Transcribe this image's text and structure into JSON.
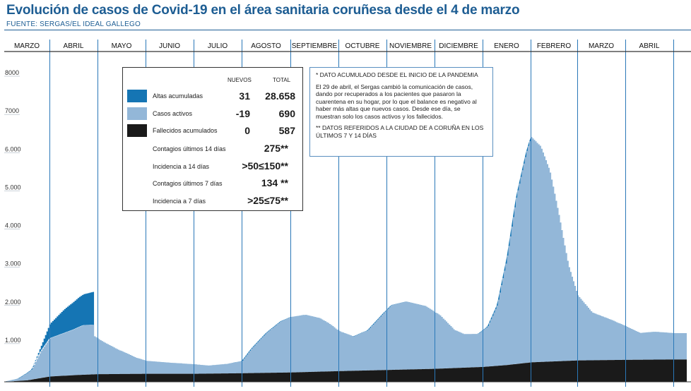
{
  "title": "Evolución de casos de Covid-19 en el área sanitaria coruñesa desde el 4 de marzo",
  "source": "FUENTE: SERGAS/EL IDEAL GALLEGO",
  "colors": {
    "title": "#1d5d93",
    "altas": "#1575b4",
    "activos": "#93b7d8",
    "fallecidos": "#1a1a1a",
    "month_line": "#2a78b8",
    "axis": "#333333"
  },
  "legend": {
    "header_nuevos": "NUEVOS",
    "header_total": "TOTAL",
    "rows": [
      {
        "label": "Altas acumuladas",
        "nuevos": "31",
        "total": "28.658",
        "color_key": "altas"
      },
      {
        "label": "Casos activos",
        "nuevos": "-19",
        "total": "690",
        "color_key": "activos"
      },
      {
        "label": "Fallecidos acumulados",
        "nuevos": "0",
        "total": "587",
        "color_key": "fallecidos"
      }
    ],
    "stats": [
      {
        "label": "Contagios últimos 14 días",
        "value": "275**"
      },
      {
        "label": "Incidencia a 14 días",
        "value": ">50≤150**"
      },
      {
        "label": "Contagios últimos 7 días",
        "value": "134 **"
      },
      {
        "label": "Incidencia a 7 días",
        "value": ">25≤75**"
      }
    ]
  },
  "notes": {
    "note1": "* DATO ACUMULADO DESDE EL INICIO DE LA PANDEMIA",
    "note2": "El 29 de abril, el Sergas cambió la comunicación de casos, dando por recuperados a los pacientes que pasaron la cuarentena en su hogar, por lo que el balance es negativo al haber más altas que nuevos casos. Desde ese día, se muestran solo los casos activos y los fallecidos.",
    "note3": "** DATOS REFERIDOS A LA CIUDAD DE A CORUÑA EN LOS ÚLTIMOS 7 Y 14 DÍAS"
  },
  "chart_data": {
    "type": "area",
    "stacked": true,
    "months": [
      "MARZO",
      "ABRIL",
      "MAYO",
      "JUNIO",
      "JULIO",
      "AGOSTO",
      "SEPTIEMBRE",
      "OCTUBRE",
      "NOVIEMBRE",
      "DICIEMBRE",
      "ENERO",
      "FEBRERO",
      "MARZO",
      "ABRIL"
    ],
    "yticks": [
      "8000",
      "7000",
      "6.000",
      "5.000",
      "4.000",
      "3.000",
      "2.000",
      "1.000"
    ],
    "ytick_values": [
      8000,
      7000,
      6000,
      5000,
      4000,
      3000,
      2000,
      1000
    ],
    "ylim": [
      0,
      8200
    ],
    "x_unit": "month index from 4 March 2020 (0 = start of MARZO)",
    "series": [
      {
        "name": "Fallecidos acumulados",
        "color_key": "fallecidos",
        "points": [
          [
            0,
            0
          ],
          [
            0.5,
            40
          ],
          [
            0.8,
            100
          ],
          [
            1,
            140
          ],
          [
            1.6,
            180
          ],
          [
            2,
            200
          ],
          [
            3,
            210
          ],
          [
            4,
            210
          ],
          [
            5,
            225
          ],
          [
            6,
            245
          ],
          [
            7,
            280
          ],
          [
            8,
            310
          ],
          [
            9,
            340
          ],
          [
            10,
            390
          ],
          [
            10.5,
            440
          ],
          [
            11,
            510
          ],
          [
            12,
            560
          ],
          [
            13,
            575
          ],
          [
            14,
            585
          ]
        ]
      },
      {
        "name": "Casos activos",
        "color_key": "activos",
        "points": [
          [
            0,
            0
          ],
          [
            0.3,
            60
          ],
          [
            0.6,
            260
          ],
          [
            0.8,
            700
          ],
          [
            1,
            1000
          ],
          [
            1.5,
            1200
          ],
          [
            1.7,
            1300
          ],
          [
            1.9,
            1300
          ],
          [
            1.92,
            1000
          ],
          [
            2.1,
            850
          ],
          [
            2.4,
            650
          ],
          [
            2.8,
            420
          ],
          [
            3,
            340
          ],
          [
            3.5,
            290
          ],
          [
            4,
            250
          ],
          [
            4.3,
            210
          ],
          [
            4.7,
            250
          ],
          [
            5,
            320
          ],
          [
            5.2,
            650
          ],
          [
            5.5,
            1050
          ],
          [
            5.8,
            1350
          ],
          [
            6,
            1450
          ],
          [
            6.3,
            1500
          ],
          [
            6.6,
            1400
          ],
          [
            6.8,
            1250
          ],
          [
            7,
            1050
          ],
          [
            7.3,
            900
          ],
          [
            7.6,
            1050
          ],
          [
            7.9,
            1450
          ],
          [
            8.1,
            1700
          ],
          [
            8.4,
            1780
          ],
          [
            8.8,
            1650
          ],
          [
            9.1,
            1400
          ],
          [
            9.4,
            1000
          ],
          [
            9.6,
            880
          ],
          [
            9.9,
            870
          ],
          [
            10.1,
            1050
          ],
          [
            10.3,
            1600
          ],
          [
            10.5,
            2800
          ],
          [
            10.7,
            4400
          ],
          [
            10.9,
            5500
          ],
          [
            11,
            5900
          ],
          [
            11.2,
            5650
          ],
          [
            11.4,
            5000
          ],
          [
            11.6,
            3800
          ],
          [
            11.8,
            2500
          ],
          [
            12,
            1700
          ],
          [
            12.3,
            1250
          ],
          [
            12.7,
            1050
          ],
          [
            13,
            880
          ],
          [
            13.3,
            700
          ],
          [
            13.6,
            730
          ],
          [
            14,
            690
          ]
        ]
      },
      {
        "name": "Altas acumuladas",
        "color_key": "altas",
        "points": [
          [
            0,
            0
          ],
          [
            0.6,
            0
          ],
          [
            0.8,
            120
          ],
          [
            1,
            380
          ],
          [
            1.3,
            620
          ],
          [
            1.6,
            780
          ],
          [
            1.9,
            860
          ],
          [
            1.91,
            0
          ],
          [
            14,
            0
          ]
        ]
      }
    ]
  }
}
